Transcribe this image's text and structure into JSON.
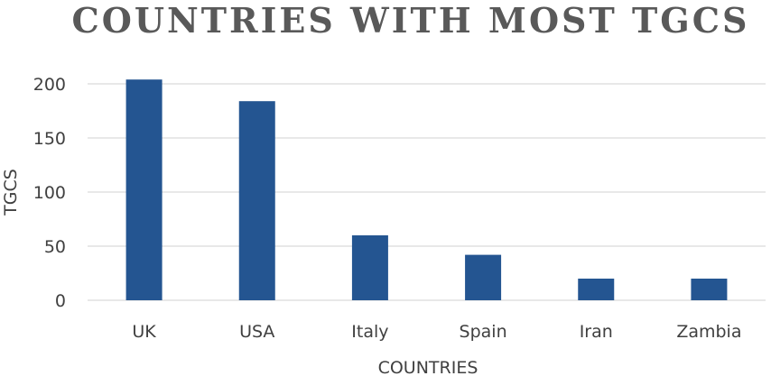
{
  "chart_data": {
    "type": "bar",
    "title": "COUNTRIES WITH MOST TGCS",
    "xlabel": "COUNTRIES",
    "ylabel": "TGCS",
    "categories": [
      "UK",
      "USA",
      "Italy",
      "Spain",
      "Iran",
      "Zambia"
    ],
    "values": [
      204,
      184,
      60,
      42,
      20,
      20
    ],
    "ylim": [
      0,
      200
    ],
    "yticks": [
      "0",
      "50",
      "100",
      "150",
      "200"
    ],
    "grid": true,
    "bar_color": "#245591"
  }
}
